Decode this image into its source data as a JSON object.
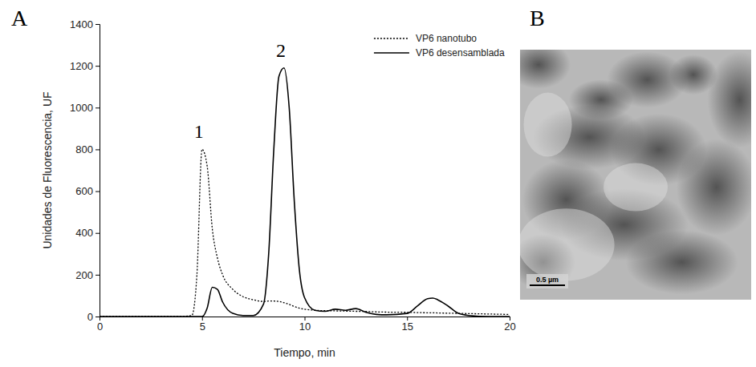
{
  "chart_data": {
    "type": "line",
    "x_label": "Tiempo, min",
    "y_label": "Unidades de Fluorescencia, UF",
    "x": [
      0,
      1,
      2,
      3,
      4,
      4.5,
      4.75,
      5,
      5.25,
      5.5,
      5.75,
      6,
      6.5,
      7,
      7.5,
      8,
      8.25,
      8.5,
      8.75,
      9,
      9.25,
      9.5,
      9.75,
      10,
      10.5,
      11,
      11.5,
      12,
      12.5,
      13,
      13.5,
      14,
      15,
      15.5,
      16,
      16.25,
      16.5,
      17,
      17.5,
      18,
      19,
      20
    ],
    "series": [
      {
        "name": "VP6 nanotubo",
        "color": "#000000",
        "line_style": "dotted",
        "values": [
          0,
          0,
          0,
          0,
          0,
          5,
          200,
          800,
          720,
          420,
          280,
          200,
          130,
          95,
          80,
          72,
          74,
          74,
          72,
          66,
          58,
          48,
          40,
          35,
          30,
          28,
          27,
          26,
          25,
          24,
          22,
          21,
          20,
          19,
          18,
          18,
          17,
          16,
          15,
          14,
          12,
          10
        ]
      },
      {
        "name": "VP6 desensamblada",
        "color": "#000000",
        "line_style": "solid",
        "values": [
          0,
          0,
          0,
          0,
          0,
          0,
          0,
          0,
          40,
          140,
          130,
          70,
          15,
          5,
          5,
          60,
          300,
          800,
          1150,
          1190,
          1000,
          550,
          220,
          90,
          30,
          25,
          35,
          30,
          38,
          20,
          10,
          8,
          15,
          50,
          85,
          88,
          80,
          50,
          15,
          5,
          0,
          0
        ]
      }
    ],
    "xlim": [
      0,
      20
    ],
    "xticks": [
      0,
      5,
      10,
      15,
      20
    ],
    "ylim": [
      0,
      1400
    ],
    "yticks": [
      0,
      200,
      400,
      600,
      800,
      1000,
      1200,
      1400
    ],
    "grid": false,
    "legend": "upper right",
    "annotations": [
      {
        "text": "1",
        "x": 5,
        "y": 800
      },
      {
        "text": "2",
        "x": 9,
        "y": 1190
      }
    ]
  },
  "figure": {
    "panel_labels": [
      "A",
      "B"
    ],
    "micrograph": {
      "scale_bar": "0.5 µm"
    }
  }
}
